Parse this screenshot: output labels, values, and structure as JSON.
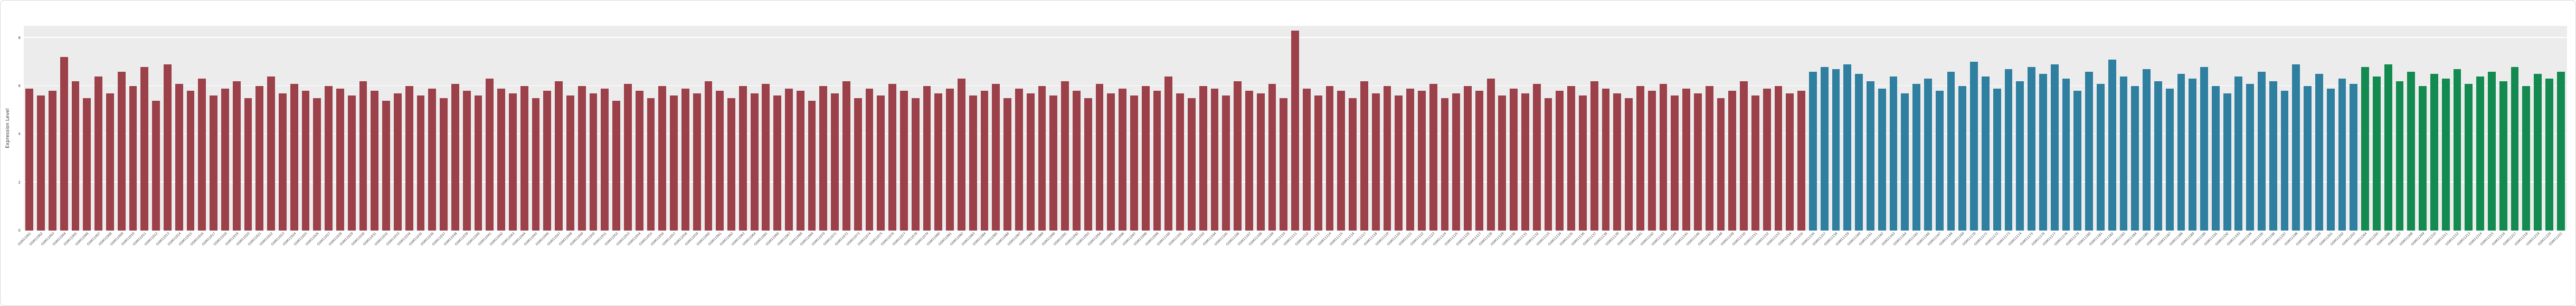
{
  "figure": {
    "title": "",
    "ylabel": "Expression Level"
  },
  "chart_data": {
    "type": "bar",
    "title": "",
    "xlabel": "",
    "ylabel": "Expression Level",
    "ylim": [
      0,
      8.5
    ],
    "yticks": [
      0,
      2,
      4,
      6,
      8
    ],
    "grid": true,
    "legend": "none",
    "plot_background": "#ececec",
    "gridline_color": "#ffffff",
    "groups": [
      {
        "name": "group-red-samples",
        "color": "#9c4049",
        "count": 155
      },
      {
        "name": "group-blue-samples",
        "color": "#2e7fa0",
        "count": 48
      },
      {
        "name": "group-green-samples",
        "color": "#128a50",
        "count": 18
      }
    ],
    "categories": [
      "GSM11001",
      "GSM11002",
      "GSM11003",
      "GSM11004",
      "GSM11005",
      "GSM11006",
      "GSM11007",
      "GSM11008",
      "GSM11009",
      "GSM11010",
      "GSM11011",
      "GSM11012",
      "GSM11013",
      "GSM11014",
      "GSM11015",
      "GSM11016",
      "GSM11017",
      "GSM11018",
      "GSM11019",
      "GSM11020",
      "GSM11021",
      "GSM11022",
      "GSM11023",
      "GSM11024",
      "GSM11025",
      "GSM11026",
      "GSM11027",
      "GSM11028",
      "GSM11029",
      "GSM11030",
      "GSM11031",
      "GSM11032",
      "GSM11033",
      "GSM11034",
      "GSM11035",
      "GSM11036",
      "GSM11037",
      "GSM11038",
      "GSM11039",
      "GSM11040",
      "GSM11041",
      "GSM11042",
      "GSM11043",
      "GSM11044",
      "GSM11045",
      "GSM11046",
      "GSM11047",
      "GSM11048",
      "GSM11049",
      "GSM11050",
      "GSM11051",
      "GSM11052",
      "GSM11053",
      "GSM11054",
      "GSM11055",
      "GSM11056",
      "GSM11057",
      "GSM11058",
      "GSM11059",
      "GSM11060",
      "GSM11061",
      "GSM11062",
      "GSM11063",
      "GSM11064",
      "GSM11065",
      "GSM11066",
      "GSM11067",
      "GSM11068",
      "GSM11069",
      "GSM11070",
      "GSM11071",
      "GSM11072",
      "GSM11073",
      "GSM11074",
      "GSM11075",
      "GSM11076",
      "GSM11077",
      "GSM11078",
      "GSM11079",
      "GSM11080",
      "GSM11081",
      "GSM11082",
      "GSM11083",
      "GSM11084",
      "GSM11085",
      "GSM11086",
      "GSM11087",
      "GSM11088",
      "GSM11089",
      "GSM11090",
      "GSM11091",
      "GSM11092",
      "GSM11093",
      "GSM11094",
      "GSM11095",
      "GSM11096",
      "GSM11097",
      "GSM11098",
      "GSM11099",
      "GSM11100",
      "GSM11101",
      "GSM11102",
      "GSM11103",
      "GSM11104",
      "GSM11105",
      "GSM11106",
      "GSM11107",
      "GSM11108",
      "GSM11109",
      "GSM11110",
      "GSM11111",
      "GSM11112",
      "GSM11113",
      "GSM11114",
      "GSM11115",
      "GSM11116",
      "GSM11117",
      "GSM11118",
      "GSM11119",
      "GSM11120",
      "GSM11121",
      "GSM11122",
      "GSM11123",
      "GSM11124",
      "GSM11125",
      "GSM11126",
      "GSM11127",
      "GSM11128",
      "GSM11129",
      "GSM11130",
      "GSM11131",
      "GSM11132",
      "GSM11133",
      "GSM11134",
      "GSM11135",
      "GSM11136",
      "GSM11137",
      "GSM11138",
      "GSM11139",
      "GSM11140",
      "GSM11141",
      "GSM11142",
      "GSM11143",
      "GSM11144",
      "GSM11145",
      "GSM11146",
      "GSM11147",
      "GSM11148",
      "GSM11149",
      "GSM11150",
      "GSM11151",
      "GSM11152",
      "GSM11153",
      "GSM11154",
      "GSM11155",
      "GSM11156",
      "GSM11157",
      "GSM11158",
      "GSM11159",
      "GSM11160",
      "GSM11161",
      "GSM11162",
      "GSM11163",
      "GSM11164",
      "GSM11165",
      "GSM11166",
      "GSM11167",
      "GSM11168",
      "GSM11169",
      "GSM11170",
      "GSM11171",
      "GSM11172",
      "GSM11173",
      "GSM11174",
      "GSM11175",
      "GSM11176",
      "GSM11177",
      "GSM11178",
      "GSM11179",
      "GSM11180",
      "GSM11181",
      "GSM11182",
      "GSM11183",
      "GSM11184",
      "GSM11185",
      "GSM11186",
      "GSM11187",
      "GSM11188",
      "GSM11189",
      "GSM11190",
      "GSM11191",
      "GSM11192",
      "GSM11193",
      "GSM11194",
      "GSM11195",
      "GSM11196",
      "GSM11197",
      "GSM11198",
      "GSM11199",
      "GSM11200",
      "GSM11201",
      "GSM11202",
      "GSM11203",
      "GSM11204",
      "GSM11205",
      "GSM11206",
      "GSM11207",
      "GSM11208",
      "GSM11209",
      "GSM11210",
      "GSM11211",
      "GSM11212",
      "GSM11213",
      "GSM11214",
      "GSM11215",
      "GSM11216",
      "GSM11217",
      "GSM11218",
      "GSM11219",
      "GSM11220",
      "GSM11221"
    ],
    "values": [
      5.9,
      5.6,
      5.8,
      7.2,
      6.2,
      5.5,
      6.4,
      5.7,
      6.6,
      6.0,
      6.8,
      5.4,
      6.9,
      6.1,
      5.8,
      6.3,
      5.6,
      5.9,
      6.2,
      5.5,
      6.0,
      6.4,
      5.7,
      6.1,
      5.8,
      5.5,
      6.0,
      5.9,
      5.6,
      6.2,
      5.8,
      5.4,
      5.7,
      6.0,
      5.6,
      5.9,
      5.5,
      6.1,
      5.8,
      5.6,
      6.3,
      5.9,
      5.7,
      6.0,
      5.5,
      5.8,
      6.2,
      5.6,
      6.0,
      5.7,
      5.9,
      5.4,
      6.1,
      5.8,
      5.5,
      6.0,
      5.6,
      5.9,
      5.7,
      6.2,
      5.8,
      5.5,
      6.0,
      5.7,
      6.1,
      5.6,
      5.9,
      5.8,
      5.4,
      6.0,
      5.7,
      6.2,
      5.5,
      5.9,
      5.6,
      6.1,
      5.8,
      5.5,
      6.0,
      5.7,
      5.9,
      6.3,
      5.6,
      5.8,
      6.1,
      5.5,
      5.9,
      5.7,
      6.0,
      5.6,
      6.2,
      5.8,
      5.5,
      6.1,
      5.7,
      5.9,
      5.6,
      6.0,
      5.8,
      6.4,
      5.7,
      5.5,
      6.0,
      5.9,
      5.6,
      6.2,
      5.8,
      5.7,
      6.1,
      5.5,
      8.3,
      5.9,
      5.6,
      6.0,
      5.8,
      5.5,
      6.2,
      5.7,
      6.0,
      5.6,
      5.9,
      5.8,
      6.1,
      5.5,
      5.7,
      6.0,
      5.8,
      6.3,
      5.6,
      5.9,
      5.7,
      6.1,
      5.5,
      5.8,
      6.0,
      5.6,
      6.2,
      5.9,
      5.7,
      5.5,
      6.0,
      5.8,
      6.1,
      5.6,
      5.9,
      5.7,
      6.0,
      5.5,
      5.8,
      6.2,
      5.6,
      5.9,
      6.0,
      5.7,
      5.8,
      6.6,
      6.8,
      6.7,
      6.9,
      6.5,
      6.2,
      5.9,
      6.4,
      5.7,
      6.1,
      6.3,
      5.8,
      6.6,
      6.0,
      7.0,
      6.4,
      5.9,
      6.7,
      6.2,
      6.8,
      6.5,
      6.9,
      6.3,
      5.8,
      6.6,
      6.1,
      7.1,
      6.4,
      6.0,
      6.7,
      6.2,
      5.9,
      6.5,
      6.3,
      6.8,
      6.0,
      5.7,
      6.4,
      6.1,
      6.6,
      6.2,
      5.8,
      6.9,
      6.0,
      6.5,
      5.9,
      6.3,
      6.1,
      6.8,
      6.4,
      6.9,
      6.2,
      6.6,
      6.0,
      6.5,
      6.3,
      6.7,
      6.1,
      6.4,
      6.6,
      6.2,
      6.8,
      6.0,
      6.5,
      6.3,
      6.6
    ]
  }
}
